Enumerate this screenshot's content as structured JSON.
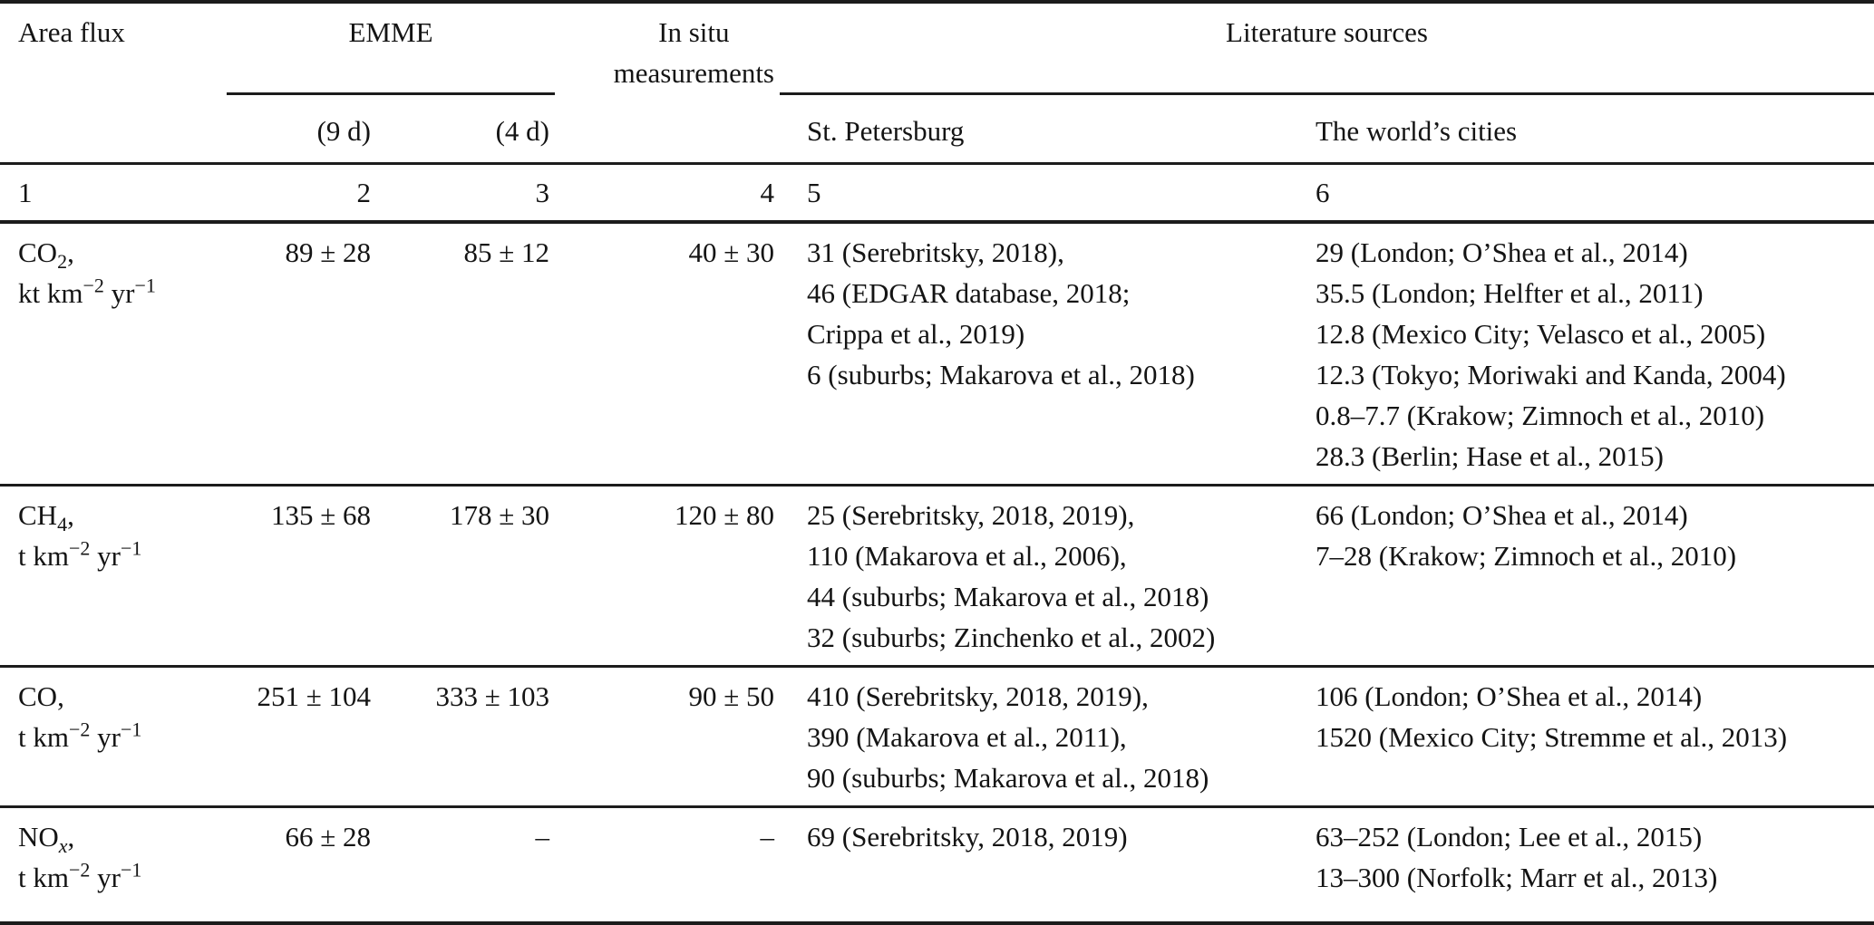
{
  "table": {
    "header": {
      "area_flux": "Area flux",
      "emme": "EMME",
      "emme_sub": [
        "(9 d)",
        "(4 d)"
      ],
      "in_situ": "In situ\nmeasurements",
      "literature": "Literature sources",
      "literature_sub": [
        "St. Petersburg",
        "The world’s cities"
      ],
      "column_numbers": [
        "1",
        "2",
        "3",
        "4",
        "5",
        "6"
      ]
    },
    "rows": [
      {
        "species_html": "CO<sub>2</sub>,",
        "unit_html": "kt km<sup>−2</sup> yr<sup>−1</sup>",
        "emme_9d": "89 ± 28",
        "emme_4d": "85 ± 12",
        "in_situ": "40 ± 30",
        "st_petersburg": [
          "31 (Serebritsky, 2018),",
          "46 (EDGAR database, 2018;",
          "Crippa et al., 2019)",
          "6 (suburbs; Makarova et al., 2018)"
        ],
        "world_cities": [
          "29 (London; O’Shea et al., 2014)",
          "35.5 (London; Helfter et al., 2011)",
          "12.8 (Mexico City; Velasco et al., 2005)",
          "12.3 (Tokyo; Moriwaki and Kanda, 2004)",
          "0.8–7.7 (Krakow; Zimnoch et al., 2010)",
          "28.3 (Berlin; Hase et al., 2015)"
        ]
      },
      {
        "species_html": "CH<sub>4</sub>,",
        "unit_html": "t km<sup>−2</sup> yr<sup>−1</sup>",
        "emme_9d": "135 ± 68",
        "emme_4d": "178 ± 30",
        "in_situ": "120 ± 80",
        "st_petersburg": [
          "25 (Serebritsky, 2018, 2019),",
          "110 (Makarova et al., 2006),",
          "44 (suburbs; Makarova et al., 2018)",
          "32 (suburbs; Zinchenko et al., 2002)"
        ],
        "world_cities": [
          "66 (London; O’Shea et al., 2014)",
          "7–28 (Krakow; Zimnoch et al., 2010)"
        ]
      },
      {
        "species_html": "CO,",
        "unit_html": "t km<sup>−2</sup> yr<sup>−1</sup>",
        "emme_9d": "251 ± 104",
        "emme_4d": "333 ± 103",
        "in_situ": "90 ± 50",
        "st_petersburg": [
          "410 (Serebritsky, 2018, 2019),",
          "390 (Makarova et al., 2011),",
          "90 (suburbs; Makarova et al., 2018)"
        ],
        "world_cities": [
          "106 (London; O’Shea et al., 2014)",
          "1520 (Mexico City; Stremme et al., 2013)"
        ]
      },
      {
        "species_html": "NO<sub><i>x</i></sub>,",
        "unit_html": "t km<sup>−2</sup> yr<sup>−1</sup>",
        "emme_9d": "66 ± 28",
        "emme_4d": "–",
        "in_situ": "–",
        "st_petersburg": [
          "69 (Serebritsky, 2018, 2019)"
        ],
        "world_cities": [
          "63–252 (London; Lee et al., 2015)",
          "13–300 (Norfolk; Marr et al., 2013)"
        ]
      }
    ]
  }
}
